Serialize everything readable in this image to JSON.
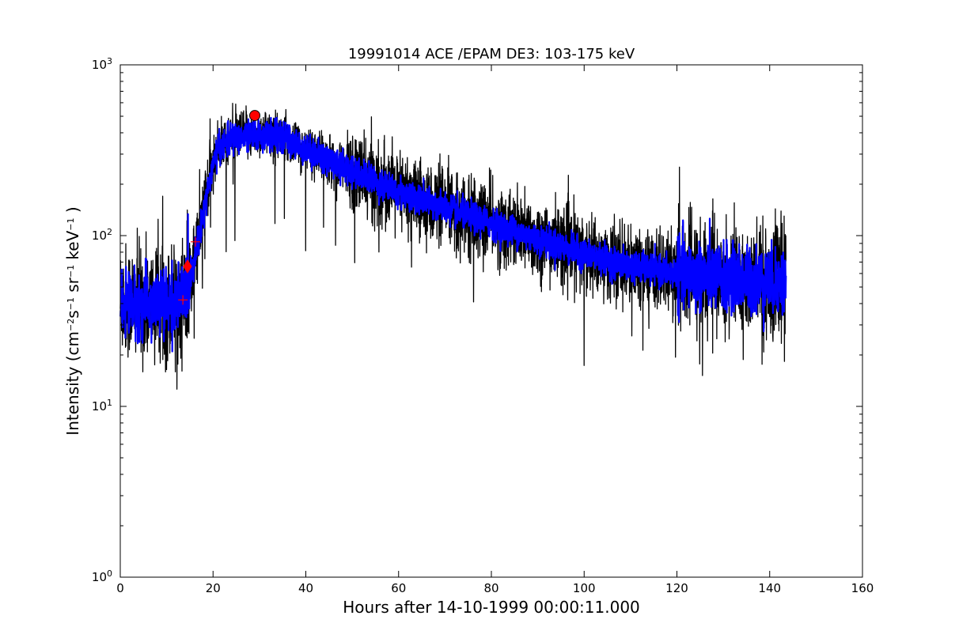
{
  "chart_data": {
    "type": "line",
    "title": "19991014 ACE /EPAM DE3: 103-175 keV",
    "xlabel": "Hours after 14-10-1999 00:00:11.000",
    "ylabel": {
      "prefix": "Intensity (cm",
      "exp1": "−2",
      "part2": "s",
      "exp2": "−1",
      "part3": " sr",
      "exp3": "−1",
      "part4": " keV",
      "exp4": "−1",
      "suffix": " )"
    },
    "x_range": [
      0,
      160
    ],
    "y_range": [
      1,
      1000
    ],
    "y_scale": "log",
    "x_ticks": [
      0,
      20,
      40,
      60,
      80,
      100,
      120,
      140,
      160
    ],
    "x_tick_labels": [
      "0",
      "20",
      "40",
      "60",
      "80",
      "100",
      "120",
      "140",
      "160"
    ],
    "y_ticks": [
      {
        "value": 1,
        "base": "10",
        "exp": "0"
      },
      {
        "value": 10,
        "base": "10",
        "exp": "1"
      },
      {
        "value": 100,
        "base": "10",
        "exp": "2"
      },
      {
        "value": 1000,
        "base": "10",
        "exp": "3"
      }
    ],
    "grid": false,
    "series": [
      {
        "color": "#000000",
        "style": "noisy-line",
        "profile": [
          {
            "x": 0.0,
            "y": 42
          },
          {
            "x": 5,
            "y": 40
          },
          {
            "x": 10,
            "y": 40
          },
          {
            "x": 13,
            "y": 42
          },
          {
            "x": 15,
            "y": 55
          },
          {
            "x": 17,
            "y": 100
          },
          {
            "x": 19,
            "y": 200
          },
          {
            "x": 21,
            "y": 320
          },
          {
            "x": 24,
            "y": 380
          },
          {
            "x": 30,
            "y": 400
          },
          {
            "x": 35,
            "y": 385
          },
          {
            "x": 40,
            "y": 320
          },
          {
            "x": 50,
            "y": 240
          },
          {
            "x": 60,
            "y": 180
          },
          {
            "x": 70,
            "y": 145
          },
          {
            "x": 80,
            "y": 118
          },
          {
            "x": 90,
            "y": 95
          },
          {
            "x": 100,
            "y": 78
          },
          {
            "x": 110,
            "y": 66
          },
          {
            "x": 120,
            "y": 60
          },
          {
            "x": 130,
            "y": 56
          },
          {
            "x": 143.5,
            "y": 53
          }
        ]
      },
      {
        "color": "#0000ff",
        "style": "smoothed-band",
        "profile": [
          {
            "x": 0.0,
            "y": 40
          },
          {
            "x": 5,
            "y": 40
          },
          {
            "x": 10,
            "y": 40
          },
          {
            "x": 13,
            "y": 42
          },
          {
            "x": 15,
            "y": 55
          },
          {
            "x": 17,
            "y": 100
          },
          {
            "x": 19,
            "y": 200
          },
          {
            "x": 21,
            "y": 320
          },
          {
            "x": 24,
            "y": 370
          },
          {
            "x": 30,
            "y": 390
          },
          {
            "x": 35,
            "y": 375
          },
          {
            "x": 40,
            "y": 320
          },
          {
            "x": 50,
            "y": 240
          },
          {
            "x": 60,
            "y": 180
          },
          {
            "x": 70,
            "y": 145
          },
          {
            "x": 80,
            "y": 118
          },
          {
            "x": 90,
            "y": 95
          },
          {
            "x": 100,
            "y": 78
          },
          {
            "x": 110,
            "y": 66
          },
          {
            "x": 120,
            "y": 60
          },
          {
            "x": 130,
            "y": 56
          },
          {
            "x": 143.5,
            "y": 53
          }
        ]
      }
    ],
    "markers": [
      {
        "type": "circle",
        "color": "#ff0000",
        "x": 29,
        "y": 505
      },
      {
        "type": "diamond",
        "color": "#ff0000",
        "x": 14.5,
        "y": 66
      },
      {
        "type": "plus",
        "color": "#ff0000",
        "x": 13.5,
        "y": 42
      },
      {
        "type": "plus",
        "color": "#ff0000",
        "x": 16.2,
        "y": 92
      }
    ]
  }
}
